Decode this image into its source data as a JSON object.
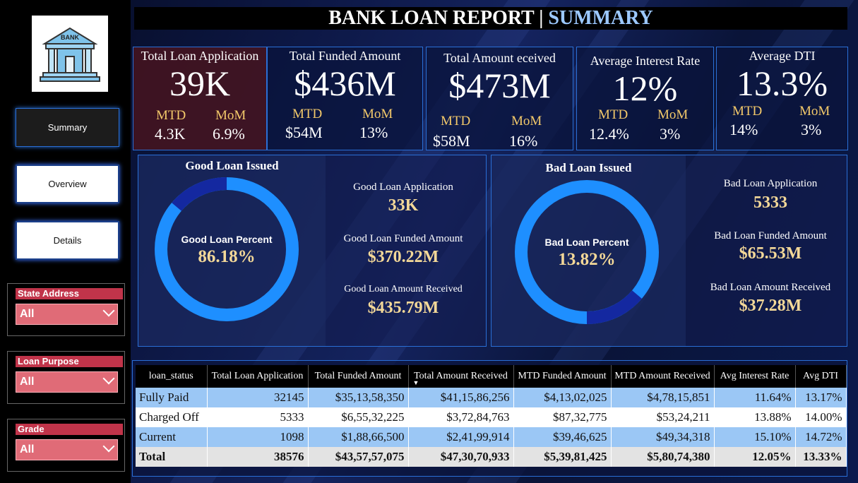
{
  "header": {
    "title": "BANK LOAN REPORT | ",
    "title_accent": "SUMMARY"
  },
  "logo": {
    "text": "BANK"
  },
  "nav": {
    "summary": "Summary",
    "overview": "Overview",
    "details": "Details"
  },
  "filters": [
    {
      "label": "State Address",
      "value": "All"
    },
    {
      "label": "Loan Purpose",
      "value": "All"
    },
    {
      "label": "Grade",
      "value": "All"
    }
  ],
  "kpis": [
    {
      "title": "Total Loan Application",
      "value": "39K",
      "mtd_label": "MTD",
      "mtd": "4.3K",
      "mom_label": "MoM",
      "mom": "6.9%"
    },
    {
      "title": "Total Funded Amount",
      "value": "$436M",
      "mtd_label": "MTD",
      "mtd": "$54M",
      "mom_label": "MoM",
      "mom": "13%"
    },
    {
      "title": "Total Amount eceived",
      "value": "$473M",
      "mtd_label": "MTD",
      "mtd": "$58M",
      "mom_label": "MoM",
      "mom": "16%"
    },
    {
      "title": "Average Interest Rate",
      "value": "12%",
      "mtd_label": "MTD",
      "mtd": "12.4%",
      "mom_label": "MoM",
      "mom": "3%"
    },
    {
      "title": "Average DTI",
      "value": "13.3%",
      "mtd_label": "MTD",
      "mtd": "14%",
      "mom_label": "MoM",
      "mom": "3%"
    }
  ],
  "good": {
    "heading": "Good Loan Issued",
    "donut_label": "Good Loan Percent",
    "donut_value": "86.18%",
    "percent": 86.18,
    "app_label": "Good Loan Application",
    "app_value": "33K",
    "funded_label": "Good Loan Funded Amount",
    "funded_value": "$370.22M",
    "received_label": "Good Loan Amount Received",
    "received_value": "$435.79M"
  },
  "bad": {
    "heading": "Bad  Loan Issued",
    "donut_label": "Bad Loan Percent",
    "donut_value": "13.82%",
    "percent": 13.82,
    "app_label": "Bad Loan Application",
    "app_value": "5333",
    "funded_label": "Bad Loan Funded Amount",
    "funded_value": "$65.53M",
    "received_label": "Bad Loan Amount Received",
    "received_value": "$37.28M"
  },
  "colors": {
    "ring_main": "#1e8fff",
    "ring_slice": "#1428a0",
    "accent_gold": "#f3d898",
    "filter_red": "#c1344a"
  },
  "table": {
    "columns": [
      "loan_status",
      "Total Loan Application",
      "Total Funded Amount",
      "Total Amount Received",
      "MTD Funded Amount",
      "MTD Amount Received",
      "Avg Interest Rate",
      "Avg DTI"
    ],
    "rows": [
      [
        "Fully Paid",
        "32145",
        "$35,13,58,350",
        "$41,15,86,256",
        "$4,13,02,025",
        "$4,78,15,851",
        "11.64%",
        "13.17%"
      ],
      [
        "Charged Off",
        "5333",
        "$6,55,32,225",
        "$3,72,84,763",
        "$87,32,775",
        "$53,24,211",
        "13.88%",
        "14.00%"
      ],
      [
        "Current",
        "1098",
        "$1,88,66,500",
        "$2,41,99,914",
        "$39,46,625",
        "$49,34,318",
        "15.10%",
        "14.72%"
      ]
    ],
    "total": [
      "Total",
      "38576",
      "$43,57,57,075",
      "$47,30,70,933",
      "$5,39,81,425",
      "$5,80,74,380",
      "12.05%",
      "13.33%"
    ]
  }
}
